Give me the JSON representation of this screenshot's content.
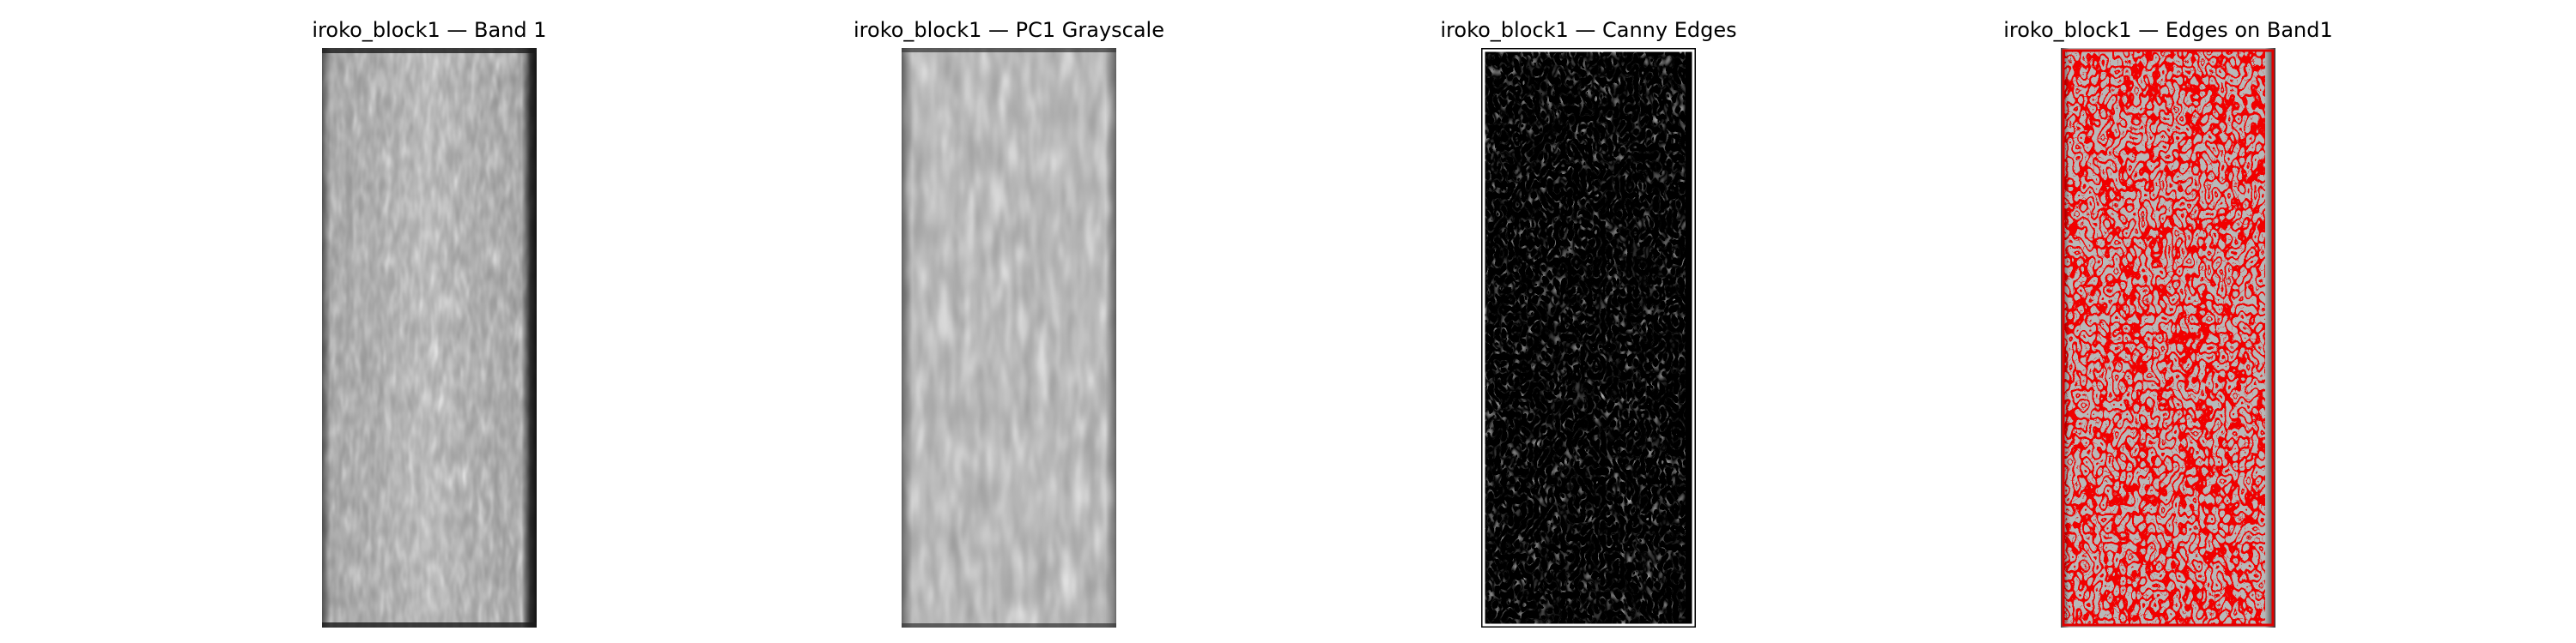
{
  "figure": {
    "panels": [
      {
        "title": "iroko_block1 — Band 1",
        "image": "grayscale wood grain texture, Band 1"
      },
      {
        "title": "iroko_block1 — PC1 Grayscale",
        "image": "grayscale wood grain texture, PC1"
      },
      {
        "title": "iroko_block1 — Canny Edges",
        "image": "white edge map on black background"
      },
      {
        "title": "iroko_block1 — Edges on Band1",
        "image": "red edge overlay on gray Band 1 texture"
      }
    ]
  },
  "colors": {
    "background": "#ffffff",
    "edge_white": "#ffffff",
    "edge_black": "#000000",
    "edge_overlay_red": "#e00000",
    "band_gray_mid": "#9a9a9a",
    "overlay_base_gray": "#b8b8b8"
  }
}
